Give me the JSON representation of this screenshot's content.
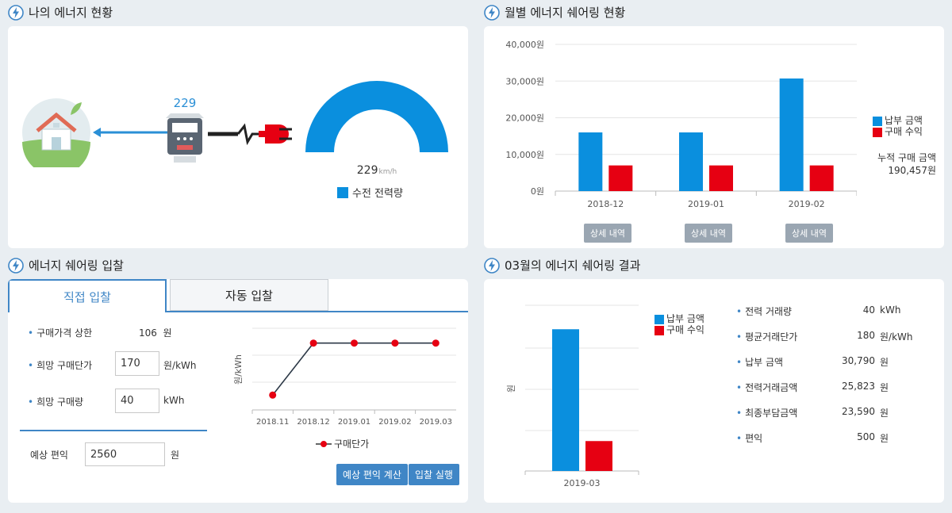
{
  "colors": {
    "blue": "#0a8fde",
    "red": "#e60012",
    "accent": "#3f86c6"
  },
  "my_energy": {
    "title": "나의 에너지 현황",
    "meter_value": "229",
    "gauge_value": "229",
    "gauge_unit": "km/h",
    "gauge_fraction": 1.0,
    "legend": "수전 전력량"
  },
  "monthly": {
    "title": "월별 에너지 쉐어링 현황",
    "legend": {
      "pay": "납부 금액",
      "buy": "구매 수익"
    },
    "cumulative_label": "누적 구매 금액",
    "cumulative_value": "190,457원",
    "detail_label": "상세 내역"
  },
  "bidding": {
    "title": "에너지 쉐어링 입찰",
    "tabs": [
      "직접 입찰",
      "자동 입찰"
    ],
    "price_cap_label": "구매가격 상한",
    "price_cap_value": "106",
    "price_cap_unit": "원",
    "hope_price_label": "희망 구매단가",
    "hope_price_value": "170",
    "hope_price_unit": "원/kWh",
    "hope_amount_label": "희망 구매량",
    "hope_amount_value": "40",
    "hope_amount_unit": "kWh",
    "expected_label": "예상 편익",
    "expected_value": "2560",
    "expected_unit": "원",
    "calc_button": "예상 편익 계산",
    "bid_button": "입찰 실행",
    "chart_legend": "구매단가"
  },
  "result": {
    "title": "03월의 에너지 쉐어링 결과",
    "legend": {
      "pay": "납부 금액",
      "buy": "구매 수익"
    },
    "items": [
      {
        "label": "전력 거래량",
        "value": "40",
        "unit": "kWh"
      },
      {
        "label": "평균거래단가",
        "value": "180",
        "unit": "원/kWh"
      },
      {
        "label": "납부 금액",
        "value": "30,790",
        "unit": "원"
      },
      {
        "label": "전력거래금액",
        "value": "25,823",
        "unit": "원"
      },
      {
        "label": "최종부담금액",
        "value": "23,590",
        "unit": "원"
      },
      {
        "label": "편익",
        "value": "500",
        "unit": "원"
      }
    ]
  },
  "chart_data": [
    {
      "type": "bar",
      "categories": [
        "2018-12",
        "2019-01",
        "2019-02"
      ],
      "series": [
        {
          "name": "납부 금액",
          "values": [
            16000,
            16000,
            30700
          ]
        },
        {
          "name": "구매 수익",
          "values": [
            7000,
            7000,
            7000
          ]
        }
      ],
      "ylim": [
        0,
        40000
      ],
      "yticks": [
        "0원",
        "10,000원",
        "20,000원",
        "30,000원",
        "40,000원"
      ],
      "legend_position": "right"
    },
    {
      "type": "line",
      "categories": [
        "2018.11",
        "2018.12",
        "2019.01",
        "2019.02",
        "2019.03"
      ],
      "series": [
        {
          "name": "구매단가",
          "values": [
            100,
            170,
            170,
            170,
            170
          ]
        }
      ],
      "ylabel": "원/kWh",
      "legend_position": "bottom"
    },
    {
      "type": "bar",
      "categories": [
        "2019-03"
      ],
      "series": [
        {
          "name": "납부 금액",
          "values": [
            30790
          ]
        },
        {
          "name": "구매 수익",
          "values": [
            6500
          ]
        }
      ],
      "ylabel": "원",
      "legend_position": "top-right"
    }
  ]
}
